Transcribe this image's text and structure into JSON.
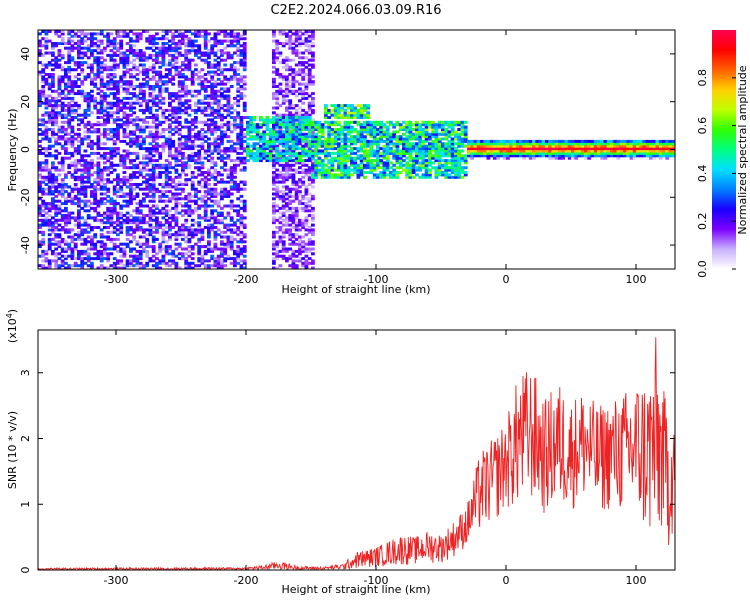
{
  "title": "C2E2.2024.066.03.09.R16",
  "chart_data": [
    {
      "type": "heatmap",
      "name": "spectrogram",
      "xlabel": "Height of straight line (km)",
      "ylabel": "Frequency (Hz)",
      "xlim": [
        -360,
        130
      ],
      "ylim": [
        -50,
        50
      ],
      "xticks": [
        -300,
        -200,
        -100,
        0,
        100
      ],
      "xtick_labels": [
        "-300",
        "-200",
        "-100",
        "0",
        "100"
      ],
      "yticks": [
        -40,
        -20,
        0,
        20,
        40
      ],
      "ytick_labels": [
        "-40",
        "-20",
        "0",
        "20",
        "40"
      ],
      "colorbar": {
        "label": "Normalized spectral amplitude",
        "range": [
          0,
          1
        ],
        "ticks": [
          0.0,
          0.2,
          0.4,
          0.6,
          0.8
        ],
        "tick_labels": [
          "0.0",
          "0.2",
          "0.4",
          "0.6",
          "0.8"
        ],
        "colors": [
          "#ffffff",
          "#c8b0ff",
          "#7b00ff",
          "#1a00ff",
          "#0080ff",
          "#00e0ff",
          "#00ff80",
          "#30ff00",
          "#c0ff00",
          "#ffd000",
          "#ff6000",
          "#ff0000",
          "#ff0050"
        ]
      },
      "regions": [
        {
          "x": [
            -360,
            -200
          ],
          "y": [
            -50,
            50
          ],
          "amplitude": 0.2,
          "pattern": "broadband noise"
        },
        {
          "x": [
            -180,
            -148
          ],
          "y": [
            -50,
            50
          ],
          "amplitude": 0.15,
          "pattern": "broadband noise"
        },
        {
          "x": [
            -200,
            -150
          ],
          "y": [
            -5,
            14
          ],
          "amplitude": 0.45,
          "pattern": "signal patches"
        },
        {
          "x": [
            -140,
            -105
          ],
          "y": [
            13,
            19
          ],
          "amplitude": 0.55,
          "pattern": "signal band"
        },
        {
          "x": [
            -150,
            -30
          ],
          "y": [
            -12,
            12
          ],
          "amplitude": 0.5,
          "pattern": "signal band"
        },
        {
          "x": [
            -30,
            130
          ],
          "y": [
            -4,
            4
          ],
          "amplitude": 0.9,
          "pattern": "carrier line"
        }
      ]
    },
    {
      "type": "line",
      "name": "snr",
      "xlabel": "Height of straight line (km)",
      "ylabel": "SNR (10 * v/v)",
      "y_multiplier": "(x10",
      "y_multiplier_exp": "4",
      "y_multiplier_close": ")",
      "xlim": [
        -360,
        130
      ],
      "ylim": [
        0,
        3.65
      ],
      "xticks": [
        -300,
        -200,
        -100,
        0,
        100
      ],
      "xtick_labels": [
        "-300",
        "-200",
        "-100",
        "0",
        "100"
      ],
      "yticks": [
        0,
        1,
        2,
        3
      ],
      "ytick_labels": [
        "0",
        "1",
        "2",
        "3"
      ],
      "color": "#ee2222",
      "envelope": {
        "x": [
          -360,
          -200,
          -185,
          -175,
          -160,
          -140,
          -125,
          -115,
          -100,
          -90,
          -80,
          -70,
          -60,
          -50,
          -40,
          -30,
          -20,
          -10,
          0,
          10,
          20,
          30,
          40,
          50,
          60,
          70,
          80,
          90,
          100,
          110,
          115,
          120,
          125,
          130
        ],
        "upper": [
          0.03,
          0.04,
          0.08,
          0.14,
          0.06,
          0.05,
          0.1,
          0.28,
          0.35,
          0.45,
          0.55,
          0.5,
          0.6,
          0.55,
          0.75,
          1.0,
          1.8,
          2.0,
          2.3,
          3.0,
          3.1,
          2.6,
          2.9,
          2.6,
          2.8,
          2.5,
          2.6,
          2.7,
          2.9,
          3.0,
          3.6,
          2.9,
          2.4,
          2.6
        ],
        "lower": [
          0.0,
          0.0,
          0.0,
          0.0,
          0.0,
          0.0,
          0.0,
          0.02,
          0.04,
          0.06,
          0.07,
          0.08,
          0.1,
          0.1,
          0.2,
          0.35,
          0.55,
          0.7,
          0.9,
          0.9,
          1.0,
          0.8,
          0.9,
          0.9,
          1.0,
          0.8,
          0.9,
          0.8,
          0.7,
          0.4,
          0.1,
          0.5,
          0.3,
          0.6
        ]
      }
    }
  ]
}
